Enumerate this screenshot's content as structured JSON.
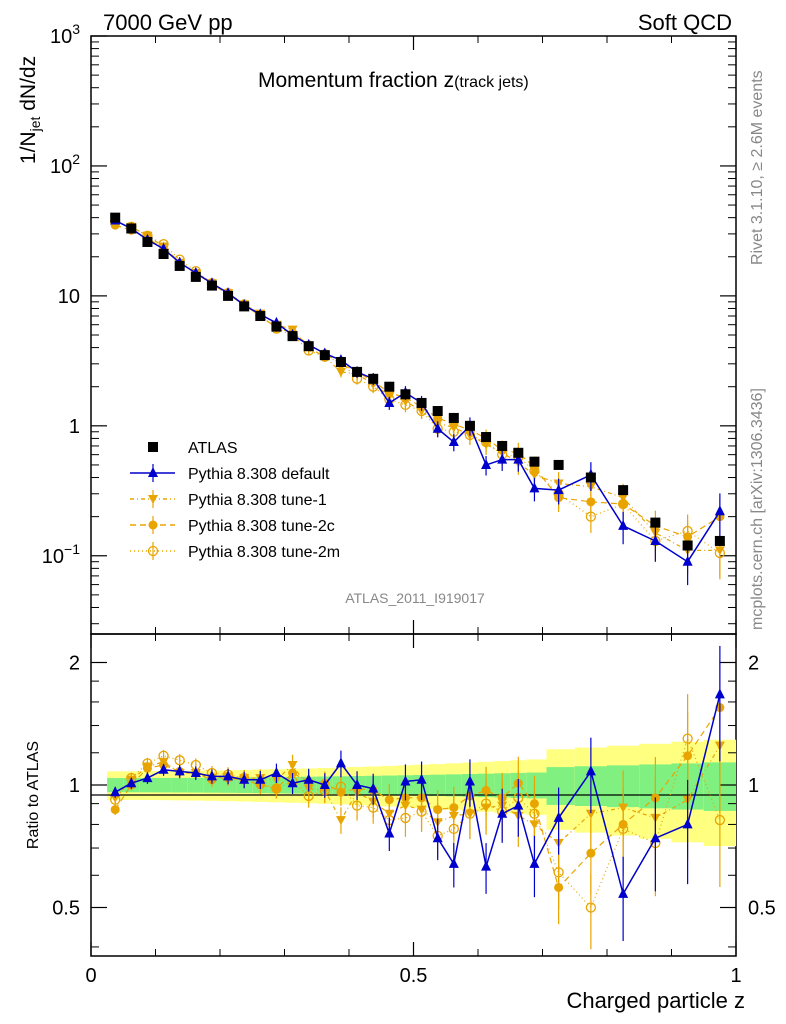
{
  "header": {
    "energy": "7000 GeV pp",
    "category": "Soft QCD"
  },
  "side_text": {
    "rivet": "Rivet 3.1.10, ≥ 2.6M events",
    "source": "mcplots.cern.ch [arXiv:1306.3436]"
  },
  "analysis_id": "ATLAS_2011_I919017",
  "chart_data": {
    "type": "scatter",
    "title_main": "Momentum fraction z",
    "title_sub": "(track jets)",
    "xlabel": "Charged particle z",
    "ylabel_top": "1/N_jet dN/dz",
    "ylabel_bottom": "Ratio to ATLAS",
    "xlim": [
      0,
      1
    ],
    "ylim_top": [
      0.025,
      1000
    ],
    "ylog_top": true,
    "ylim_bottom": [
      0.38,
      2.35
    ],
    "x_ticks": [
      "0",
      "0.5",
      "1"
    ],
    "y_ticks_top": [
      "10^-1",
      "1",
      "10",
      "10^2",
      "10^3"
    ],
    "y_ticks_bottom": [
      "0.5",
      "1",
      "2"
    ],
    "x": [
      0.0375,
      0.0625,
      0.0875,
      0.1125,
      0.1375,
      0.1625,
      0.1875,
      0.2125,
      0.2375,
      0.2625,
      0.2875,
      0.3125,
      0.3375,
      0.3625,
      0.3875,
      0.4125,
      0.4375,
      0.4625,
      0.4875,
      0.5125,
      0.5375,
      0.5625,
      0.5875,
      0.6125,
      0.6375,
      0.6625,
      0.6875,
      0.725,
      0.775,
      0.825,
      0.875,
      0.925,
      0.975
    ],
    "series": [
      {
        "name": "ATLAS",
        "color": "#000000",
        "marker": "square",
        "values": [
          40,
          33,
          26,
          21,
          17,
          14,
          12,
          10,
          8.3,
          7.0,
          5.8,
          4.9,
          4.1,
          3.5,
          3.1,
          2.6,
          2.3,
          2.0,
          1.75,
          1.5,
          1.3,
          1.15,
          1.0,
          0.82,
          0.7,
          0.62,
          0.53,
          0.5,
          0.4,
          0.32,
          0.18,
          0.12,
          0.13
        ]
      },
      {
        "name": "Pythia 8.308 default",
        "color": "#0000cc",
        "marker": "triangle-up",
        "dash": "",
        "values": [
          38,
          33,
          27,
          23,
          18,
          15,
          12.5,
          10.5,
          8.5,
          7.2,
          6.2,
          5.0,
          4.2,
          3.6,
          3.2,
          2.6,
          2.3,
          1.5,
          1.8,
          1.5,
          0.95,
          0.75,
          1.0,
          0.5,
          0.55,
          0.55,
          0.33,
          0.32,
          0.42,
          0.17,
          0.13,
          0.09,
          0.22
        ],
        "ratio": [
          0.96,
          1.01,
          1.04,
          1.09,
          1.08,
          1.07,
          1.05,
          1.05,
          1.03,
          1.03,
          1.07,
          1.01,
          1.03,
          1.0,
          1.13,
          1.0,
          0.98,
          0.76,
          1.02,
          1.03,
          0.74,
          0.64,
          1.02,
          0.63,
          0.85,
          0.89,
          0.64,
          0.83,
          1.08,
          0.54,
          0.74,
          0.8,
          1.67
        ]
      },
      {
        "name": "Pythia 8.308 tune-1",
        "color": "#e8a400",
        "marker": "triangle-down",
        "dash": "4,3,1,3",
        "values": [
          37,
          34,
          29,
          24,
          18,
          15,
          12.5,
          10.5,
          8.6,
          7.3,
          6.0,
          5.5,
          4.0,
          3.4,
          2.6,
          2.5,
          2.1,
          1.7,
          1.55,
          1.3,
          1.05,
          0.97,
          0.85,
          0.72,
          0.62,
          0.52,
          0.42,
          0.36,
          0.34,
          0.28,
          0.15,
          0.11,
          0.11
        ],
        "ratio": [
          0.93,
          1.03,
          1.11,
          1.14,
          1.07,
          1.07,
          1.04,
          1.05,
          1.04,
          1.04,
          1.03,
          1.12,
          0.98,
          0.97,
          0.82,
          0.96,
          0.91,
          0.85,
          0.89,
          0.87,
          0.81,
          0.84,
          0.85,
          0.88,
          0.89,
          0.84,
          0.8,
          0.72,
          0.85,
          0.88,
          0.83,
          0.92,
          1.25
        ]
      },
      {
        "name": "Pythia 8.308 tune-2c",
        "color": "#e8a400",
        "marker": "circle",
        "dash": "6,4",
        "values": [
          35,
          32,
          28,
          23,
          18,
          15,
          12.3,
          10.3,
          8.5,
          7.0,
          5.7,
          5.2,
          4.2,
          3.6,
          3.0,
          2.6,
          2.2,
          1.8,
          1.65,
          1.4,
          1.15,
          1.03,
          0.93,
          0.8,
          0.65,
          0.62,
          0.48,
          0.28,
          0.26,
          0.25,
          0.17,
          0.14,
          0.2
        ],
        "ratio": [
          0.87,
          1.0,
          1.1,
          1.12,
          1.08,
          1.07,
          1.03,
          1.04,
          1.03,
          1.0,
          0.98,
          1.07,
          1.02,
          1.01,
          0.96,
          0.98,
          0.97,
          0.92,
          0.93,
          0.93,
          0.87,
          0.88,
          0.94,
          0.97,
          0.93,
          1.01,
          0.9,
          0.56,
          0.68,
          0.8,
          0.93,
          1.18,
          1.55
        ]
      },
      {
        "name": "Pythia 8.308 tune-2m",
        "color": "#e8a400",
        "marker": "circle-open",
        "dash": "1,3",
        "values": [
          37,
          34,
          29,
          25,
          19,
          15.5,
          12.5,
          10.5,
          8.6,
          7.1,
          5.6,
          5.0,
          3.8,
          3.4,
          3.1,
          2.3,
          2.0,
          1.6,
          1.45,
          1.3,
          0.95,
          0.9,
          0.85,
          0.75,
          0.6,
          0.58,
          0.45,
          0.3,
          0.2,
          0.25,
          0.13,
          0.155,
          0.105
        ],
        "ratio": [
          0.92,
          1.04,
          1.13,
          1.18,
          1.15,
          1.12,
          1.07,
          1.06,
          1.04,
          1.01,
          0.98,
          1.02,
          0.94,
          0.97,
          0.99,
          0.89,
          0.88,
          0.82,
          0.83,
          0.86,
          0.75,
          0.78,
          0.85,
          0.9,
          0.86,
          0.93,
          0.85,
          0.61,
          0.5,
          0.78,
          0.72,
          1.3,
          0.82
        ]
      }
    ],
    "legend_position": "middle-left"
  }
}
